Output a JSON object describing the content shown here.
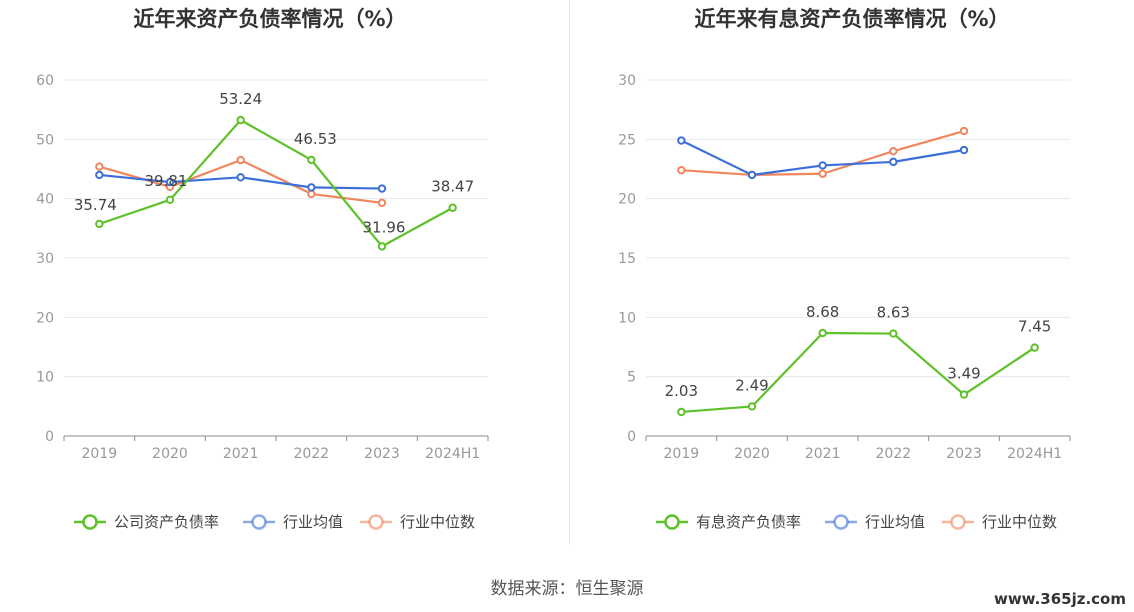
{
  "source": "数据来源：恒生聚源",
  "watermark": "www.365jz.com",
  "colors": {
    "green": "#5ec12a",
    "blue": "#3c6fd8",
    "orange": "#f0865e",
    "grid": "#e4e8f0",
    "axis": "#888888",
    "tick_label": "#999999"
  },
  "chart_data": [
    {
      "type": "line",
      "title": "近年来资产负债率情况（%）",
      "categories": [
        "2019",
        "2020",
        "2021",
        "2022",
        "2023",
        "2024H1"
      ],
      "ylim": [
        0,
        60
      ],
      "yticks": [
        0,
        10,
        20,
        30,
        40,
        50,
        60
      ],
      "grid": true,
      "legend_position": "bottom",
      "series": [
        {
          "name": "公司资产负债率",
          "color": "#5ec12a",
          "values": [
            35.74,
            39.81,
            53.24,
            46.53,
            31.96,
            38.47
          ],
          "show_labels": true
        },
        {
          "name": "行业均值",
          "color": "#3c6fd8",
          "values": [
            44.0,
            42.8,
            43.6,
            41.9,
            41.7,
            null
          ],
          "show_labels": false
        },
        {
          "name": "行业中位数",
          "color": "#f0865e",
          "values": [
            45.4,
            42.0,
            46.5,
            40.8,
            39.3,
            null
          ],
          "show_labels": false
        }
      ]
    },
    {
      "type": "line",
      "title": "近年来有息资产负债率情况（%）",
      "categories": [
        "2019",
        "2020",
        "2021",
        "2022",
        "2023",
        "2024H1"
      ],
      "ylim": [
        0,
        30
      ],
      "yticks": [
        0,
        5,
        10,
        15,
        20,
        25,
        30
      ],
      "grid": true,
      "legend_position": "bottom",
      "series": [
        {
          "name": "有息资产负债率",
          "color": "#5ec12a",
          "values": [
            2.03,
            2.49,
            8.68,
            8.63,
            3.49,
            7.45
          ],
          "show_labels": true
        },
        {
          "name": "行业均值",
          "color": "#3c6fd8",
          "values": [
            24.9,
            22.0,
            22.8,
            23.1,
            24.1,
            null
          ],
          "show_labels": false
        },
        {
          "name": "行业中位数",
          "color": "#f0865e",
          "values": [
            22.4,
            22.0,
            22.1,
            24.0,
            25.7,
            null
          ],
          "show_labels": false
        }
      ]
    }
  ]
}
